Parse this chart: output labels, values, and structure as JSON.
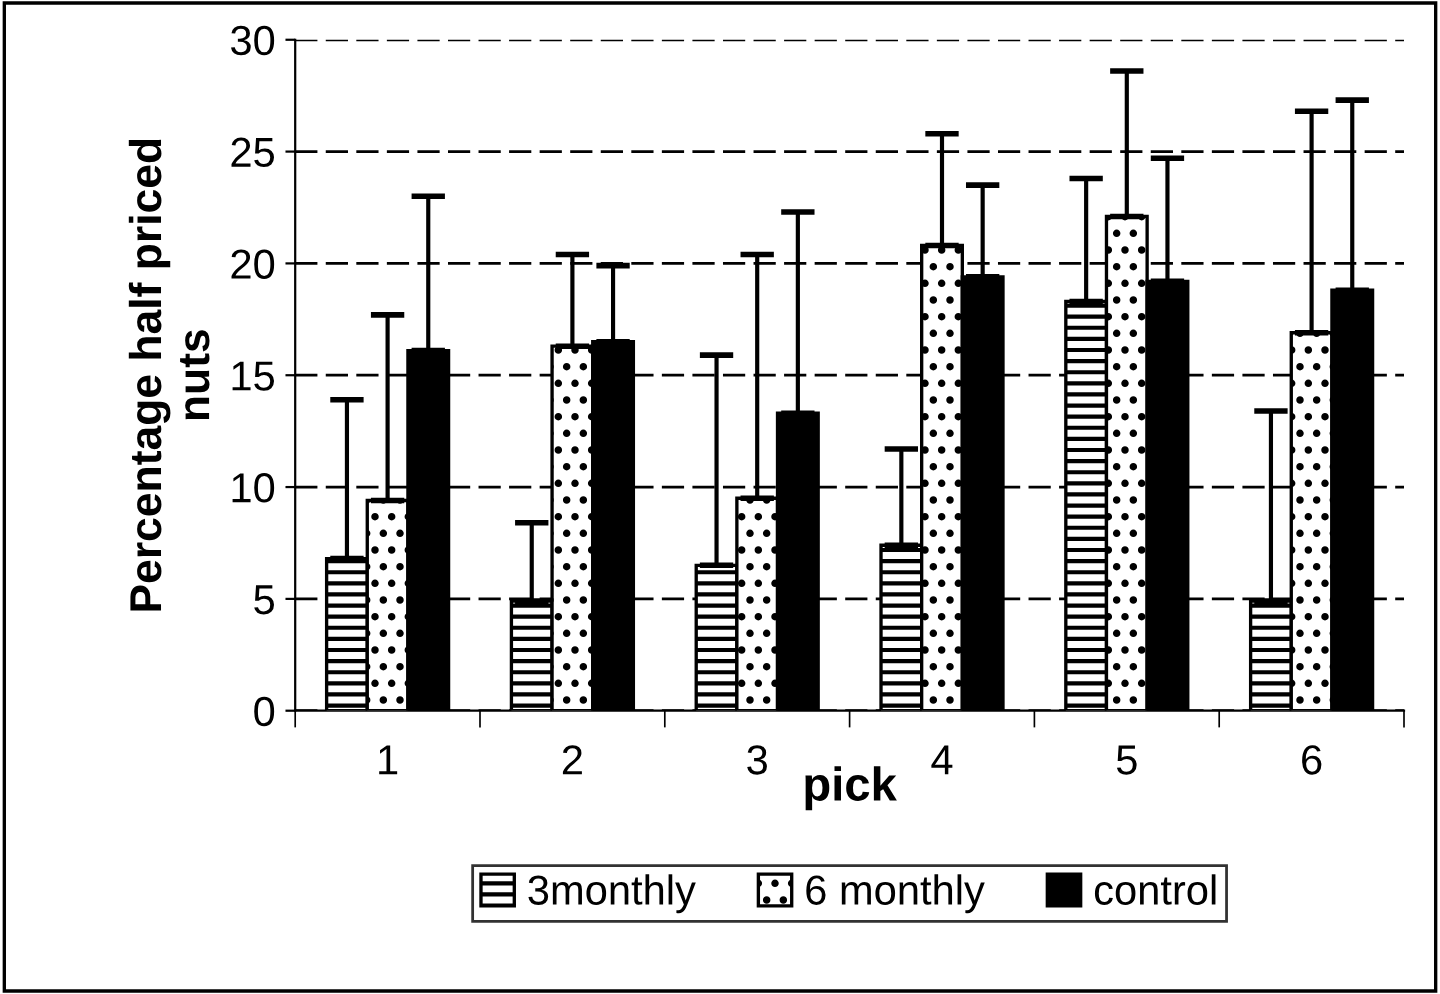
{
  "chart_data": {
    "type": "bar",
    "xlabel": "pick",
    "ylabel": "Percentage half priced\nnuts",
    "categories": [
      "1",
      "2",
      "3",
      "4",
      "5",
      "6"
    ],
    "series": [
      {
        "name": "3monthly",
        "color": "#000000",
        "values": [
          6.8,
          4.9,
          6.5,
          7.4,
          18.3,
          4.9
        ],
        "errors": [
          [
            6.8,
            13.9
          ],
          [
            4.9,
            8.4
          ],
          [
            6.5,
            15.9
          ],
          [
            7.4,
            11.7
          ],
          [
            18.3,
            23.8
          ],
          [
            4.9,
            13.4
          ]
        ]
      },
      {
        "name": "6 monthly",
        "color": "#000000",
        "values": [
          9.4,
          16.3,
          9.5,
          20.8,
          22.1,
          16.9
        ],
        "errors": [
          [
            9.4,
            17.7
          ],
          [
            16.3,
            20.4
          ],
          [
            9.5,
            20.4
          ],
          [
            20.8,
            25.8
          ],
          [
            22.1,
            28.6
          ],
          [
            16.9,
            26.8
          ]
        ]
      },
      {
        "name": "control",
        "color": "#000000",
        "values": [
          16.1,
          16.5,
          13.3,
          19.4,
          19.2,
          18.8
        ],
        "errors": [
          [
            16.1,
            23.0
          ],
          [
            16.5,
            19.9
          ],
          [
            13.3,
            22.3
          ],
          [
            19.4,
            23.5
          ],
          [
            19.2,
            24.7
          ],
          [
            18.8,
            27.3
          ]
        ]
      }
    ],
    "ylim": [
      0,
      30
    ],
    "yticks": [
      0,
      5,
      10,
      15,
      20,
      25,
      30
    ],
    "grid": "y",
    "legend": "bottom"
  }
}
